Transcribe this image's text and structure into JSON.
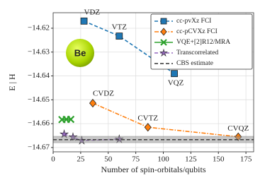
{
  "chart_data": {
    "type": "line",
    "xlabel": "Number of spin-orbitals/qubits",
    "ylabel": "E | H",
    "icon_label": "Be",
    "xlim": [
      0,
      182
    ],
    "ylim": [
      -14.6718,
      -14.6135
    ],
    "xticks": [
      0,
      25,
      50,
      75,
      100,
      125,
      150,
      175
    ],
    "yticks": [
      {
        "value": -14.62,
        "label": "−14.62"
      },
      {
        "value": -14.63,
        "label": "−14.63"
      },
      {
        "value": -14.64,
        "label": "−14.64"
      },
      {
        "value": -14.65,
        "label": "−14.65"
      },
      {
        "value": -14.66,
        "label": "−14.66"
      },
      {
        "value": -14.67,
        "label": "−14.67"
      }
    ],
    "grid": true,
    "legend": "upper right",
    "series": [
      {
        "name": "cc-pvXz FCI",
        "color": "#1f77b4",
        "marker": "square",
        "linestyle": "dashed",
        "x": [
          28,
          60,
          110
        ],
        "values": [
          -14.617,
          -14.6233,
          -14.639
        ],
        "point_labels": [
          "VDZ",
          "VTZ",
          "VQZ"
        ]
      },
      {
        "name": "cc-pCVXz FCI",
        "color": "#ff7f0e",
        "marker": "diamond",
        "linestyle": "dashdot",
        "x": [
          36,
          86,
          168
        ],
        "values": [
          -14.6514,
          -14.6615,
          -14.6655
        ],
        "point_labels": [
          "CVDZ",
          "CVTZ",
          "CVQZ"
        ]
      },
      {
        "name": "VQE+[2]R12/MRA",
        "color": "#2ca02c",
        "marker": "cross",
        "linestyle": "solid",
        "x": [
          8,
          12,
          16
        ],
        "values": [
          -14.6583,
          -14.6582,
          -14.6582
        ]
      },
      {
        "name": "Transcorrelated",
        "color": "#9467bd",
        "marker": "star",
        "linestyle": "dashed",
        "x": [
          10,
          18,
          26,
          60
        ],
        "values": [
          -14.6644,
          -14.6656,
          -14.6671,
          -14.6665
        ]
      },
      {
        "name": "CBS estimate",
        "color": "#333333",
        "marker": "none",
        "linestyle": "dashed",
        "value": -14.6667,
        "band": [
          -14.6653,
          -14.668
        ]
      }
    ]
  }
}
